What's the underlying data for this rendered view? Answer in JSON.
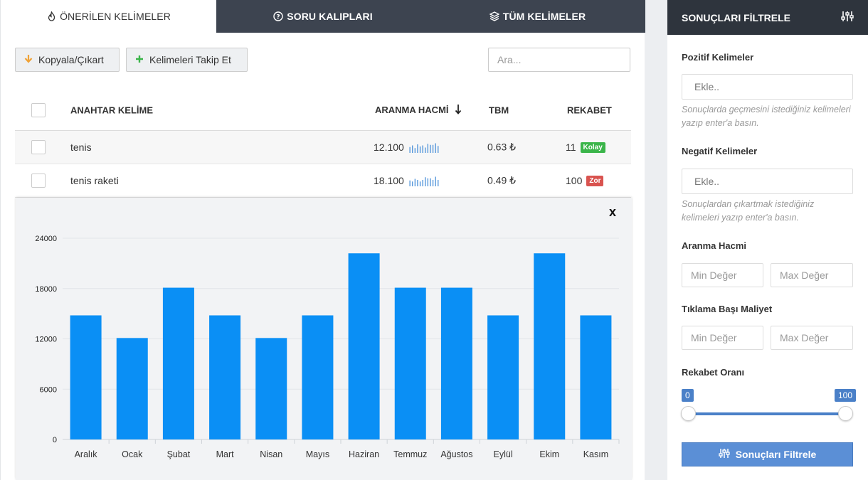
{
  "tabs": [
    {
      "label": "ÖNERİLEN KELİMELER",
      "icon": "fire-icon"
    },
    {
      "label": "SORU KALIPLARI",
      "icon": "question-circle-icon"
    },
    {
      "label": "TÜM KELİMELER",
      "icon": "layers-icon"
    }
  ],
  "toolbar": {
    "copy_label": "Kopyala/Çıkart",
    "follow_label": "Kelimeleri Takip Et",
    "search_placeholder": "Ara..."
  },
  "table": {
    "headers": {
      "keyword": "ANAHTAR KELİME",
      "volume": "ARANMA HACMİ",
      "cpc": "TBM",
      "competition": "REKABET"
    },
    "rows": [
      {
        "keyword": "tenis",
        "volume": "12.100",
        "cpc": "0.63 ₺",
        "competition": "11",
        "badge": "Kolay",
        "badge_color": "#3bb54a",
        "trend": [
          0.55,
          0.7,
          0.45,
          0.8,
          0.6,
          0.7,
          0.5,
          0.85,
          0.75,
          0.75,
          0.9,
          0.65
        ]
      },
      {
        "keyword": "tenis raketi",
        "volume": "18.100",
        "cpc": "0.49 ₺",
        "competition": "100",
        "badge": "Zor",
        "badge_color": "#d9534f",
        "trend": [
          0.55,
          0.45,
          0.7,
          0.6,
          0.45,
          0.6,
          0.85,
          0.75,
          0.75,
          0.6,
          0.9,
          0.6
        ]
      }
    ]
  },
  "chart_data": {
    "type": "bar",
    "categories": [
      "Aralık",
      "Ocak",
      "Şubat",
      "Mart",
      "Nisan",
      "Mayıs",
      "Haziran",
      "Temmuz",
      "Ağustos",
      "Eylül",
      "Ekim",
      "Kasım"
    ],
    "values": [
      14800,
      12100,
      18100,
      14800,
      12100,
      14800,
      22200,
      18100,
      18100,
      14800,
      22200,
      14800
    ],
    "yticks": [
      0,
      6000,
      12000,
      18000,
      24000
    ],
    "ylim": [
      0,
      24000
    ],
    "color": "#0a8ff5",
    "close_label": "x"
  },
  "sidebar": {
    "title": "SONUÇLARI FİLTRELE",
    "positive": {
      "label": "Pozitif Kelimeler",
      "placeholder": "Ekle..",
      "hint": "Sonuçlarda geçmesini istediğiniz kelimeleri yazıp enter'a basın."
    },
    "negative": {
      "label": "Negatif Kelimeler",
      "placeholder": "Ekle..",
      "hint": "Sonuçlardan çıkartmak istediğiniz kelimeleri yazıp enter'a basın."
    },
    "volume": {
      "label": "Aranma Hacmi",
      "min_placeholder": "Min Değer",
      "max_placeholder": "Max Değer"
    },
    "cpc": {
      "label": "Tıklama Başı Maliyet",
      "min_placeholder": "Min Değer",
      "max_placeholder": "Max Değer"
    },
    "competition": {
      "label": "Rekabet Oranı",
      "min": "0",
      "max": "100"
    },
    "button_label": "Sonuçları Filtrele"
  }
}
